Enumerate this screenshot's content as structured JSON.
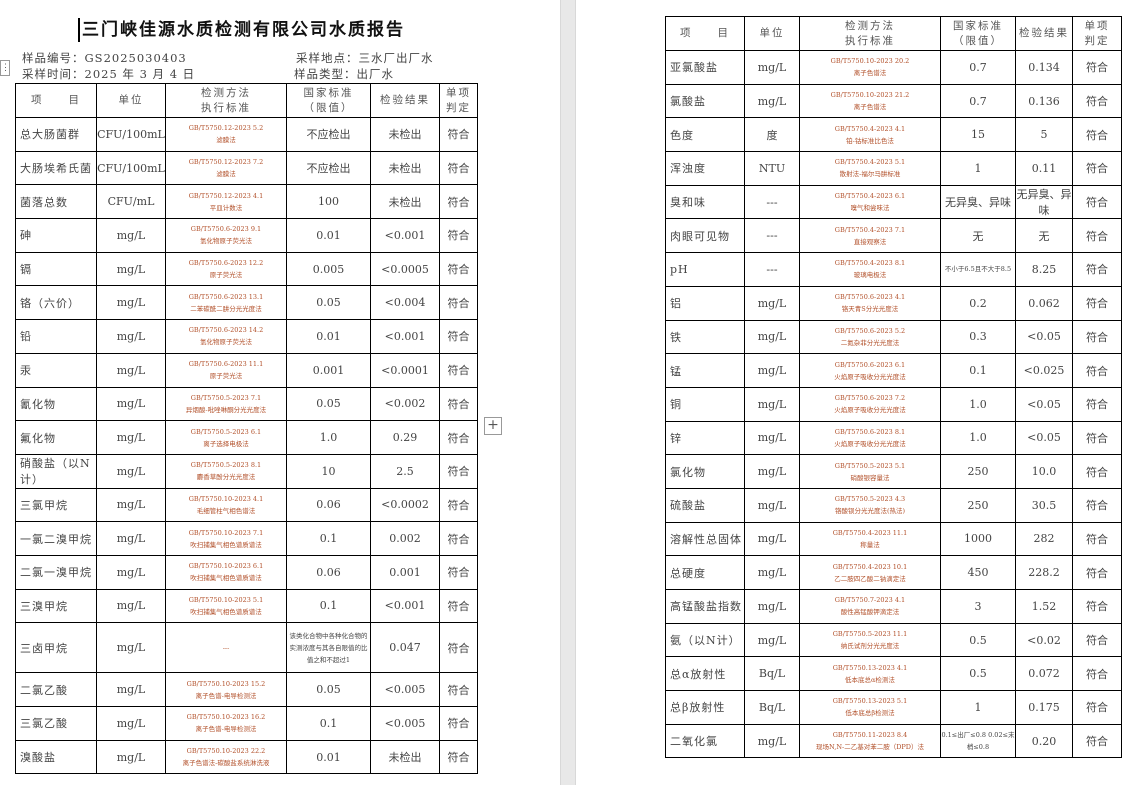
{
  "title": "三门峡佳源水质检测有限公司水质报告",
  "meta": {
    "sample_no": "样品编号：GS2025030403",
    "sample_time": "采样时间：2025 年 3 月 4 日",
    "sample_site": "采样地点：三水厂出厂水",
    "sample_type": "样品类型：出厂水"
  },
  "header": {
    "item": "项　　目",
    "unit": "单位",
    "method1": "检测方法",
    "method2": "执行标准",
    "std1": "国家标准",
    "std2": "（限值）",
    "result": "检验结果",
    "judge1": "单项",
    "judge2": "判定"
  },
  "left_rows": [
    {
      "item": "总大肠菌群",
      "unit": "CFU/100mL",
      "m1": "GB/T5750.12-2023 5.2",
      "m2": "滤膜法",
      "std": "不应检出",
      "result": "未检出",
      "judge": "符合"
    },
    {
      "item": "大肠埃希氏菌",
      "unit": "CFU/100mL",
      "m1": "GB/T5750.12-2023 7.2",
      "m2": "滤膜法",
      "std": "不应检出",
      "result": "未检出",
      "judge": "符合"
    },
    {
      "item": "菌落总数",
      "unit": "CFU/mL",
      "m1": "GB/T5750.12-2023 4.1",
      "m2": "平皿计数法",
      "std": "100",
      "result": "未检出",
      "judge": "符合"
    },
    {
      "item": "砷",
      "unit": "mg/L",
      "m1": "GB/T5750.6-2023 9.1",
      "m2": "氢化物原子荧光法",
      "std": "0.01",
      "result": "<0.001",
      "judge": "符合"
    },
    {
      "item": "镉",
      "unit": "mg/L",
      "m1": "GB/T5750.6-2023 12.2",
      "m2": "原子荧光法",
      "std": "0.005",
      "result": "<0.0005",
      "judge": "符合"
    },
    {
      "item": "铬（六价）",
      "unit": "mg/L",
      "m1": "GB/T5750.6-2023 13.1",
      "m2": "二苯碳酰二肼分光光度法",
      "std": "0.05",
      "result": "<0.004",
      "judge": "符合"
    },
    {
      "item": "铅",
      "unit": "mg/L",
      "m1": "GB/T5750.6-2023 14.2",
      "m2": "氢化物原子荧光法",
      "std": "0.01",
      "result": "<0.001",
      "judge": "符合"
    },
    {
      "item": "汞",
      "unit": "mg/L",
      "m1": "GB/T5750.6-2023 11.1",
      "m2": "原子荧光法",
      "std": "0.001",
      "result": "<0.0001",
      "judge": "符合"
    },
    {
      "item": "氰化物",
      "unit": "mg/L",
      "m1": "GB/T5750.5-2023 7.1",
      "m2": "异烟酸-吡唑啉酮分光光度法",
      "std": "0.05",
      "result": "<0.002",
      "judge": "符合"
    },
    {
      "item": "氟化物",
      "unit": "mg/L",
      "m1": "GB/T5750.5-2023 6.1",
      "m2": "离子选择电极法",
      "std": "1.0",
      "result": "0.29",
      "judge": "符合"
    },
    {
      "item": "硝酸盐（以N计）",
      "unit": "mg/L",
      "m1": "GB/T5750.5-2023 8.1",
      "m2": "麝香草酚分光光度法",
      "std": "10",
      "result": "2.5",
      "judge": "符合"
    },
    {
      "item": "三氯甲烷",
      "unit": "mg/L",
      "m1": "GB/T5750.10-2023 4.1",
      "m2": "毛细管柱气相色谱法",
      "std": "0.06",
      "result": "<0.0002",
      "judge": "符合"
    },
    {
      "item": "一氯二溴甲烷",
      "unit": "mg/L",
      "m1": "GB/T5750.10-2023 7.1",
      "m2": "吹扫捕集气相色谱质谱法",
      "std": "0.1",
      "result": "0.002",
      "judge": "符合"
    },
    {
      "item": "二氯一溴甲烷",
      "unit": "mg/L",
      "m1": "GB/T5750.10-2023 6.1",
      "m2": "吹扫捕集气相色谱质谱法",
      "std": "0.06",
      "result": "0.001",
      "judge": "符合"
    },
    {
      "item": "三溴甲烷",
      "unit": "mg/L",
      "m1": "GB/T5750.10-2023 5.1",
      "m2": "吹扫捕集气相色谱质谱法",
      "std": "0.1",
      "result": "<0.001",
      "judge": "符合"
    },
    {
      "item": "三卤甲烷",
      "unit": "mg/L",
      "m1": "---",
      "m2": "",
      "std": "该类化合物中各种化合物的实测浓度与其各自限值的比值之和不超过1",
      "result": "0.047",
      "judge": "符合"
    },
    {
      "item": "二氯乙酸",
      "unit": "mg/L",
      "m1": "GB/T5750.10-2023 15.2",
      "m2": "离子色谱-电导检测法",
      "std": "0.05",
      "result": "<0.005",
      "judge": "符合"
    },
    {
      "item": "三氯乙酸",
      "unit": "mg/L",
      "m1": "GB/T5750.10-2023 16.2",
      "m2": "离子色谱-电导检测法",
      "std": "0.1",
      "result": "<0.005",
      "judge": "符合"
    },
    {
      "item": "溴酸盐",
      "unit": "mg/L",
      "m1": "GB/T5750.10-2023 22.2",
      "m2": "离子色谱法-碳酸盐系统淋洗液",
      "std": "0.01",
      "result": "未检出",
      "judge": "符合"
    }
  ],
  "right_rows": [
    {
      "item": "亚氯酸盐",
      "unit": "mg/L",
      "m1": "GB/T5750.10-2023 20.2",
      "m2": "离子色谱法",
      "std": "0.7",
      "result": "0.134",
      "judge": "符合"
    },
    {
      "item": "氯酸盐",
      "unit": "mg/L",
      "m1": "GB/T5750.10-2023 21.2",
      "m2": "离子色谱法",
      "std": "0.7",
      "result": "0.136",
      "judge": "符合"
    },
    {
      "item": "色度",
      "unit": "度",
      "m1": "GB/T5750.4-2023 4.1",
      "m2": "铂-钴标准比色法",
      "std": "15",
      "result": "5",
      "judge": "符合"
    },
    {
      "item": "浑浊度",
      "unit": "NTU",
      "m1": "GB/T5750.4-2023 5.1",
      "m2": "散射法-福尔马肼标准",
      "std": "1",
      "result": "0.11",
      "judge": "符合"
    },
    {
      "item": "臭和味",
      "unit": "---",
      "m1": "GB/T5750.4-2023 6.1",
      "m2": "嗅气和尝味法",
      "std": "无异臭、异味",
      "result": "无异臭、异味",
      "judge": "符合"
    },
    {
      "item": "肉眼可见物",
      "unit": "---",
      "m1": "GB/T5750.4-2023 7.1",
      "m2": "直接观察法",
      "std": "无",
      "result": "无",
      "judge": "符合"
    },
    {
      "item": "pH",
      "unit": "---",
      "m1": "GB/T5750.4-2023 8.1",
      "m2": "玻璃电极法",
      "std": "不小于6.5且不大于8.5",
      "result": "8.25",
      "judge": "符合"
    },
    {
      "item": "铝",
      "unit": "mg/L",
      "m1": "GB/T5750.6-2023 4.1",
      "m2": "铬天青S分光光度法",
      "std": "0.2",
      "result": "0.062",
      "judge": "符合"
    },
    {
      "item": "铁",
      "unit": "mg/L",
      "m1": "GB/T5750.6-2023 5.2",
      "m2": "二氮杂菲分光光度法",
      "std": "0.3",
      "result": "<0.05",
      "judge": "符合"
    },
    {
      "item": "锰",
      "unit": "mg/L",
      "m1": "GB/T5750.6-2023 6.1",
      "m2": "火焰原子吸收分光光度法",
      "std": "0.1",
      "result": "<0.025",
      "judge": "符合"
    },
    {
      "item": "铜",
      "unit": "mg/L",
      "m1": "GB/T5750.6-2023 7.2",
      "m2": "火焰原子吸收分光光度法",
      "std": "1.0",
      "result": "<0.05",
      "judge": "符合"
    },
    {
      "item": "锌",
      "unit": "mg/L",
      "m1": "GB/T5750.6-2023 8.1",
      "m2": "火焰原子吸收分光光度法",
      "std": "1.0",
      "result": "<0.05",
      "judge": "符合"
    },
    {
      "item": "氯化物",
      "unit": "mg/L",
      "m1": "GB/T5750.5-2023 5.1",
      "m2": "硝酸银容量法",
      "std": "250",
      "result": "10.0",
      "judge": "符合"
    },
    {
      "item": "硫酸盐",
      "unit": "mg/L",
      "m1": "GB/T5750.5-2023 4.3",
      "m2": "铬酸钡分光光度法(热法)",
      "std": "250",
      "result": "30.5",
      "judge": "符合"
    },
    {
      "item": "溶解性总固体",
      "unit": "mg/L",
      "m1": "GB/T5750.4-2023 11.1",
      "m2": "称量法",
      "std": "1000",
      "result": "282",
      "judge": "符合"
    },
    {
      "item": "总硬度",
      "unit": "mg/L",
      "m1": "GB/T5750.4-2023 10.1",
      "m2": "乙二胺四乙酸二钠滴定法",
      "std": "450",
      "result": "228.2",
      "judge": "符合"
    },
    {
      "item": "高锰酸盐指数",
      "unit": "mg/L",
      "m1": "GB/T5750.7-2023 4.1",
      "m2": "酸性高锰酸钾滴定法",
      "std": "3",
      "result": "1.52",
      "judge": "符合"
    },
    {
      "item": "氨（以N计）",
      "unit": "mg/L",
      "m1": "GB/T5750.5-2023 11.1",
      "m2": "纳氏试剂分光光度法",
      "std": "0.5",
      "result": "<0.02",
      "judge": "符合"
    },
    {
      "item": "总α放射性",
      "unit": "Bq/L",
      "m1": "GB/T5750.13-2023 4.1",
      "m2": "低本底总α检测法",
      "std": "0.5",
      "result": "0.072",
      "judge": "符合"
    },
    {
      "item": "总β放射性",
      "unit": "Bq/L",
      "m1": "GB/T5750.13-2023 5.1",
      "m2": "低本底总β检测法",
      "std": "1",
      "result": "0.175",
      "judge": "符合"
    },
    {
      "item": "二氧化氯",
      "unit": "mg/L",
      "m1": "GB/T5750.11-2023 8.4",
      "m2": "现场N,N-二乙基对苯二胺（DPD）法",
      "std": "0.1≤出厂≤0.8 0.02≤末梢≤0.8",
      "result": "0.20",
      "judge": "符合"
    }
  ]
}
